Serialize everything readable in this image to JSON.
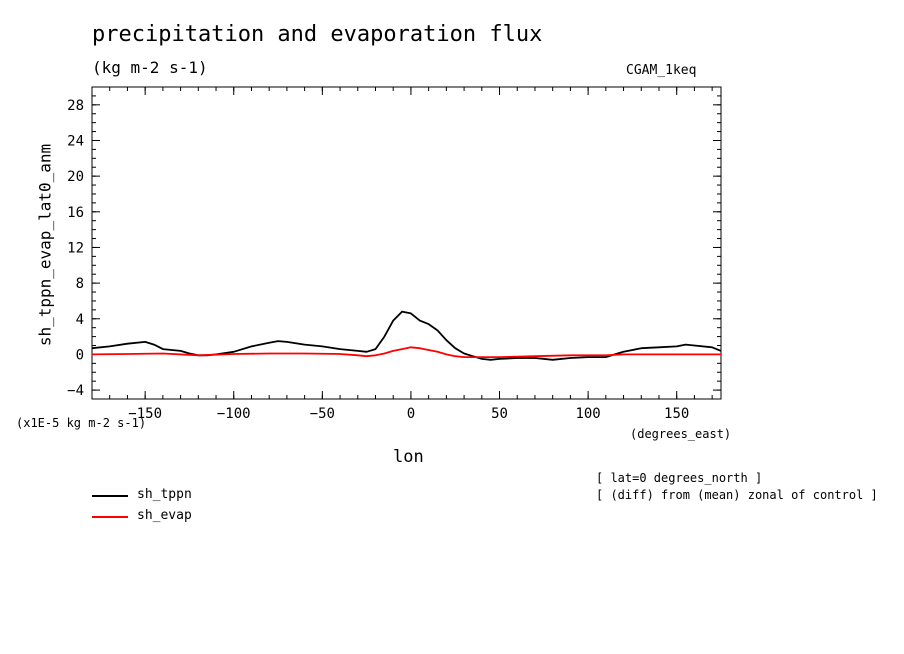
{
  "title": "precipitation and evaporation flux",
  "units": "(kg m-2 s-1)",
  "model": "CGAM_1keq",
  "y_axis_label": "sh_tppn_evap_lat0_anm",
  "y_scale_note": "(x1E-5 kg m-2 s-1)",
  "x_axis_label": "lon",
  "x_units": "(degrees_east)",
  "notes": [
    "[ lat=0 degrees_north ]",
    "[ (diff) from (mean) zonal of control ]"
  ],
  "chart_data": {
    "type": "line",
    "title": "precipitation and evaporation flux",
    "xlabel": "lon",
    "ylabel": "sh_tppn_evap_lat0_anm",
    "xlim": [
      -180,
      175
    ],
    "ylim": [
      -5,
      30
    ],
    "x_ticks": [
      -150,
      -100,
      -50,
      0,
      50,
      100,
      150
    ],
    "y_ticks": [
      -4,
      0,
      4,
      8,
      12,
      16,
      20,
      24,
      28
    ],
    "grid": false,
    "legend_position": "bottom-left",
    "series": [
      {
        "name": "sh_tppn",
        "color": "#000000",
        "points": [
          [
            -180,
            0.7
          ],
          [
            -170,
            0.9
          ],
          [
            -160,
            1.2
          ],
          [
            -150,
            1.4
          ],
          [
            -145,
            1.1
          ],
          [
            -140,
            0.6
          ],
          [
            -130,
            0.4
          ],
          [
            -125,
            0.1
          ],
          [
            -120,
            -0.1
          ],
          [
            -115,
            -0.1
          ],
          [
            -110,
            0.0
          ],
          [
            -100,
            0.3
          ],
          [
            -90,
            0.9
          ],
          [
            -80,
            1.3
          ],
          [
            -75,
            1.5
          ],
          [
            -70,
            1.4
          ],
          [
            -60,
            1.1
          ],
          [
            -50,
            0.9
          ],
          [
            -40,
            0.6
          ],
          [
            -30,
            0.4
          ],
          [
            -25,
            0.3
          ],
          [
            -20,
            0.6
          ],
          [
            -15,
            2.0
          ],
          [
            -10,
            3.8
          ],
          [
            -5,
            4.8
          ],
          [
            0,
            4.6
          ],
          [
            5,
            3.8
          ],
          [
            10,
            3.4
          ],
          [
            15,
            2.7
          ],
          [
            20,
            1.6
          ],
          [
            25,
            0.7
          ],
          [
            30,
            0.1
          ],
          [
            35,
            -0.2
          ],
          [
            40,
            -0.5
          ],
          [
            45,
            -0.6
          ],
          [
            50,
            -0.5
          ],
          [
            60,
            -0.4
          ],
          [
            70,
            -0.4
          ],
          [
            80,
            -0.6
          ],
          [
            90,
            -0.4
          ],
          [
            100,
            -0.3
          ],
          [
            110,
            -0.3
          ],
          [
            115,
            0.0
          ],
          [
            120,
            0.3
          ],
          [
            130,
            0.7
          ],
          [
            140,
            0.8
          ],
          [
            150,
            0.9
          ],
          [
            155,
            1.1
          ],
          [
            160,
            1.0
          ],
          [
            170,
            0.8
          ],
          [
            175,
            0.4
          ]
        ]
      },
      {
        "name": "sh_evap",
        "color": "#ff0000",
        "points": [
          [
            -180,
            0.0
          ],
          [
            -160,
            0.05
          ],
          [
            -140,
            0.1
          ],
          [
            -120,
            -0.1
          ],
          [
            -100,
            0.05
          ],
          [
            -80,
            0.1
          ],
          [
            -60,
            0.1
          ],
          [
            -40,
            0.05
          ],
          [
            -30,
            -0.1
          ],
          [
            -25,
            -0.2
          ],
          [
            -20,
            -0.1
          ],
          [
            -15,
            0.1
          ],
          [
            -10,
            0.4
          ],
          [
            -5,
            0.6
          ],
          [
            0,
            0.8
          ],
          [
            5,
            0.7
          ],
          [
            10,
            0.5
          ],
          [
            15,
            0.3
          ],
          [
            20,
            0.0
          ],
          [
            25,
            -0.2
          ],
          [
            30,
            -0.3
          ],
          [
            40,
            -0.3
          ],
          [
            50,
            -0.3
          ],
          [
            70,
            -0.2
          ],
          [
            90,
            -0.1
          ],
          [
            110,
            -0.1
          ],
          [
            120,
            0.0
          ],
          [
            140,
            0.0
          ],
          [
            160,
            0.0
          ],
          [
            175,
            0.0
          ]
        ]
      }
    ]
  }
}
